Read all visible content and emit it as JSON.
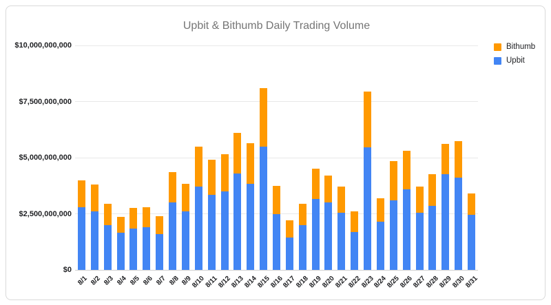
{
  "chart_data": {
    "type": "bar",
    "stacked": true,
    "title": "Upbit & Bithumb Daily Trading Volume",
    "grid": true,
    "legend_position": "top-right",
    "categories": [
      "8/1",
      "8/2",
      "8/3",
      "8/4",
      "8/5",
      "8/6",
      "8/7",
      "8/8",
      "8/9",
      "8/10",
      "8/11",
      "8/12",
      "8/13",
      "8/14",
      "8/15",
      "8/16",
      "8/17",
      "8/18",
      "8/19",
      "8/20",
      "8/21",
      "8/22",
      "8/23",
      "8/24",
      "8/25",
      "8/26",
      "8/27",
      "8/28",
      "8/29",
      "8/30",
      "8/31"
    ],
    "series": [
      {
        "name": "Upbit",
        "color": "#4285f4",
        "values": [
          2800000000,
          2600000000,
          2000000000,
          1650000000,
          1850000000,
          1900000000,
          1600000000,
          3000000000,
          2600000000,
          3700000000,
          3350000000,
          3500000000,
          4300000000,
          3850000000,
          5500000000,
          2500000000,
          1450000000,
          2000000000,
          3150000000,
          3000000000,
          2550000000,
          1700000000,
          5450000000,
          2150000000,
          3100000000,
          3600000000,
          2550000000,
          2850000000,
          4250000000,
          4100000000,
          2450000000
        ]
      },
      {
        "name": "Bithumb",
        "color": "#ff9900",
        "values": [
          1200000000,
          1200000000,
          950000000,
          700000000,
          900000000,
          900000000,
          800000000,
          1350000000,
          1250000000,
          1800000000,
          1550000000,
          1650000000,
          1800000000,
          1800000000,
          2600000000,
          1250000000,
          750000000,
          950000000,
          1350000000,
          1200000000,
          1150000000,
          900000000,
          2500000000,
          1050000000,
          1750000000,
          1700000000,
          1150000000,
          1400000000,
          1350000000,
          1650000000,
          950000000
        ]
      }
    ],
    "legend": [
      {
        "label": "Bithumb",
        "color": "#ff9900"
      },
      {
        "label": "Upbit",
        "color": "#4285f4"
      }
    ],
    "y_axis": {
      "max": 10000000000,
      "tick_values": [
        0,
        2500000000,
        5000000000,
        7500000000,
        10000000000
      ],
      "tick_labels": [
        "$0",
        "$2,500,000,000",
        "$5,000,000,000",
        "$7,500,000,000",
        "$10,000,000,000"
      ]
    },
    "colors": {
      "upbit": "#4285f4",
      "bithumb": "#ff9900",
      "title_text": "#757575",
      "axis_text": "#202124",
      "gridline": "#e8e8e8",
      "card_border": "#d9d9d9"
    }
  }
}
